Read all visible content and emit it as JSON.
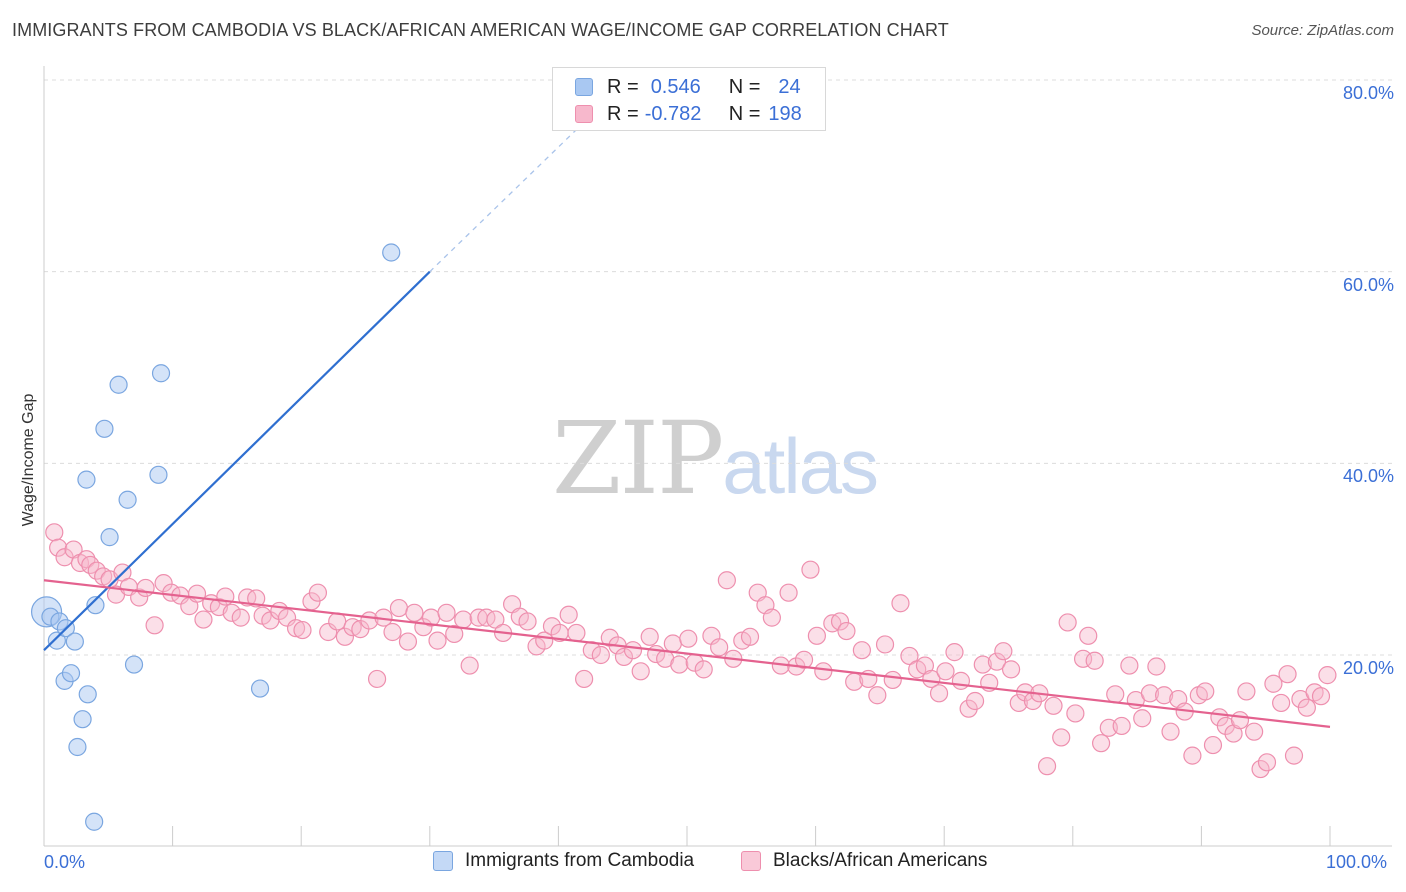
{
  "header": {
    "title": "IMMIGRANTS FROM CAMBODIA VS BLACK/AFRICAN AMERICAN WAGE/INCOME GAP CORRELATION CHART",
    "source": "Source: ZipAtlas.com"
  },
  "watermark": {
    "part1": "ZIP",
    "part2": "atlas"
  },
  "legend_top": {
    "rows": [
      {
        "r_label": "R =",
        "r_value": "0.546",
        "n_label": "N =",
        "n_value": "24"
      },
      {
        "r_label": "R =",
        "r_value": "-0.782",
        "n_label": "N =",
        "n_value": "198"
      }
    ]
  },
  "legend_bottom": {
    "items": [
      "Immigrants from Cambodia",
      "Blacks/African Americans"
    ]
  },
  "colors": {
    "blue_fill": "#a9c8f2",
    "blue_stroke": "#7aa6e0",
    "blue_line": "#2f6fd0",
    "pink_fill": "#f7b8cc",
    "pink_stroke": "#ee8fae",
    "pink_line": "#e4628f",
    "grid": "#dcdcdc",
    "tick_text": "#3b6fd6"
  },
  "chart_data": {
    "type": "scatter",
    "title": "IMMIGRANTS FROM CAMBODIA VS BLACK/AFRICAN AMERICAN WAGE/INCOME GAP CORRELATION CHART",
    "xlabel": "",
    "ylabel": "Wage/Income Gap",
    "xlim": [
      0,
      100
    ],
    "ylim": [
      0,
      85
    ],
    "x_tick_labels": [
      "0.0%",
      "100.0%"
    ],
    "y_ticks": [
      20,
      40,
      60,
      80
    ],
    "y_tick_labels": [
      "20.0%",
      "40.0%",
      "60.0%",
      "80.0%"
    ],
    "grid": true,
    "legend_position": "top-center",
    "series": [
      {
        "name": "Immigrants from Cambodia",
        "color": "#a9c8f2",
        "R": 0.546,
        "N": 24,
        "trend": {
          "x0": 0,
          "y0": 20.5,
          "x1": 30,
          "y1": 60,
          "dash_to_x": 42,
          "dash_to_y": 75.6
        },
        "points": [
          {
            "x": 0.2,
            "y": 24.5,
            "big": true
          },
          {
            "x": 0.5,
            "y": 24.0
          },
          {
            "x": 1.0,
            "y": 21.5
          },
          {
            "x": 1.2,
            "y": 23.5
          },
          {
            "x": 1.7,
            "y": 22.8
          },
          {
            "x": 1.6,
            "y": 17.3
          },
          {
            "x": 2.1,
            "y": 18.1
          },
          {
            "x": 2.4,
            "y": 21.4
          },
          {
            "x": 2.6,
            "y": 10.4
          },
          {
            "x": 3.0,
            "y": 13.3
          },
          {
            "x": 3.3,
            "y": 38.3
          },
          {
            "x": 3.4,
            "y": 15.9
          },
          {
            "x": 4.0,
            "y": 25.2
          },
          {
            "x": 3.9,
            "y": 2.6
          },
          {
            "x": 4.7,
            "y": 43.6
          },
          {
            "x": 5.1,
            "y": 32.3
          },
          {
            "x": 5.8,
            "y": 48.2
          },
          {
            "x": 6.5,
            "y": 36.2
          },
          {
            "x": 7.0,
            "y": 19.0
          },
          {
            "x": 8.9,
            "y": 38.8
          },
          {
            "x": 9.1,
            "y": 49.4
          },
          {
            "x": 16.8,
            "y": 16.5
          },
          {
            "x": 27.0,
            "y": 62.0
          }
        ]
      },
      {
        "name": "Blacks/African Americans",
        "color": "#f7b8cc",
        "R": -0.782,
        "N": 198,
        "trend": {
          "x0": 0,
          "y0": 27.8,
          "x1": 100,
          "y1": 12.5
        },
        "points": [
          {
            "x": 0.8,
            "y": 32.8
          },
          {
            "x": 1.1,
            "y": 31.2
          },
          {
            "x": 1.6,
            "y": 30.2
          },
          {
            "x": 2.3,
            "y": 31.0
          },
          {
            "x": 2.8,
            "y": 29.6
          },
          {
            "x": 3.3,
            "y": 30.0
          },
          {
            "x": 3.6,
            "y": 29.4
          },
          {
            "x": 4.1,
            "y": 28.8
          },
          {
            "x": 4.6,
            "y": 28.2
          },
          {
            "x": 5.1,
            "y": 27.9
          },
          {
            "x": 5.6,
            "y": 26.3
          },
          {
            "x": 6.1,
            "y": 28.6
          },
          {
            "x": 6.6,
            "y": 27.1
          },
          {
            "x": 7.4,
            "y": 26.0
          },
          {
            "x": 7.9,
            "y": 27.0
          },
          {
            "x": 8.6,
            "y": 23.1
          },
          {
            "x": 9.3,
            "y": 27.5
          },
          {
            "x": 9.9,
            "y": 26.5
          },
          {
            "x": 10.6,
            "y": 26.2
          },
          {
            "x": 11.3,
            "y": 25.1
          },
          {
            "x": 11.9,
            "y": 26.4
          },
          {
            "x": 12.4,
            "y": 23.7
          },
          {
            "x": 13.0,
            "y": 25.4
          },
          {
            "x": 13.6,
            "y": 25.0
          },
          {
            "x": 14.1,
            "y": 26.1
          },
          {
            "x": 14.6,
            "y": 24.4
          },
          {
            "x": 15.3,
            "y": 23.9
          },
          {
            "x": 15.8,
            "y": 26.0
          },
          {
            "x": 16.5,
            "y": 25.9
          },
          {
            "x": 17.0,
            "y": 24.1
          },
          {
            "x": 17.6,
            "y": 23.6
          },
          {
            "x": 18.3,
            "y": 24.6
          },
          {
            "x": 18.9,
            "y": 23.9
          },
          {
            "x": 19.6,
            "y": 22.8
          },
          {
            "x": 20.1,
            "y": 22.6
          },
          {
            "x": 20.8,
            "y": 25.6
          },
          {
            "x": 21.3,
            "y": 26.5
          },
          {
            "x": 22.1,
            "y": 22.4
          },
          {
            "x": 22.8,
            "y": 23.5
          },
          {
            "x": 23.4,
            "y": 21.9
          },
          {
            "x": 24.0,
            "y": 22.9
          },
          {
            "x": 24.6,
            "y": 22.7
          },
          {
            "x": 25.3,
            "y": 23.6
          },
          {
            "x": 25.9,
            "y": 17.5
          },
          {
            "x": 26.4,
            "y": 23.9
          },
          {
            "x": 27.1,
            "y": 22.4
          },
          {
            "x": 27.6,
            "y": 24.9
          },
          {
            "x": 28.3,
            "y": 21.4
          },
          {
            "x": 28.8,
            "y": 24.4
          },
          {
            "x": 29.5,
            "y": 22.9
          },
          {
            "x": 30.1,
            "y": 23.9
          },
          {
            "x": 30.6,
            "y": 21.5
          },
          {
            "x": 31.3,
            "y": 24.4
          },
          {
            "x": 31.9,
            "y": 22.2
          },
          {
            "x": 32.6,
            "y": 23.7
          },
          {
            "x": 33.1,
            "y": 18.9
          },
          {
            "x": 33.8,
            "y": 23.9
          },
          {
            "x": 34.4,
            "y": 23.9
          },
          {
            "x": 35.1,
            "y": 23.7
          },
          {
            "x": 35.7,
            "y": 22.3
          },
          {
            "x": 36.4,
            "y": 25.3
          },
          {
            "x": 37.0,
            "y": 24.0
          },
          {
            "x": 37.6,
            "y": 23.5
          },
          {
            "x": 38.3,
            "y": 20.9
          },
          {
            "x": 38.9,
            "y": 21.5
          },
          {
            "x": 39.5,
            "y": 23.0
          },
          {
            "x": 40.1,
            "y": 22.3
          },
          {
            "x": 40.8,
            "y": 24.2
          },
          {
            "x": 41.4,
            "y": 22.3
          },
          {
            "x": 42.0,
            "y": 17.5
          },
          {
            "x": 42.6,
            "y": 20.5
          },
          {
            "x": 43.3,
            "y": 20.0
          },
          {
            "x": 44.0,
            "y": 21.8
          },
          {
            "x": 44.6,
            "y": 21.0
          },
          {
            "x": 45.1,
            "y": 19.8
          },
          {
            "x": 45.8,
            "y": 20.5
          },
          {
            "x": 46.4,
            "y": 18.3
          },
          {
            "x": 47.1,
            "y": 21.9
          },
          {
            "x": 47.6,
            "y": 20.1
          },
          {
            "x": 48.3,
            "y": 19.6
          },
          {
            "x": 48.9,
            "y": 21.2
          },
          {
            "x": 49.4,
            "y": 19.0
          },
          {
            "x": 50.1,
            "y": 21.7
          },
          {
            "x": 50.6,
            "y": 19.2
          },
          {
            "x": 51.3,
            "y": 18.5
          },
          {
            "x": 51.9,
            "y": 22.0
          },
          {
            "x": 52.5,
            "y": 20.8
          },
          {
            "x": 53.1,
            "y": 27.8
          },
          {
            "x": 53.6,
            "y": 19.6
          },
          {
            "x": 54.3,
            "y": 21.5
          },
          {
            "x": 54.9,
            "y": 21.9
          },
          {
            "x": 55.5,
            "y": 26.5
          },
          {
            "x": 56.1,
            "y": 25.2
          },
          {
            "x": 56.6,
            "y": 23.9
          },
          {
            "x": 57.3,
            "y": 18.9
          },
          {
            "x": 57.9,
            "y": 26.5
          },
          {
            "x": 58.5,
            "y": 18.8
          },
          {
            "x": 59.1,
            "y": 19.5
          },
          {
            "x": 59.6,
            "y": 28.9
          },
          {
            "x": 60.1,
            "y": 22.0
          },
          {
            "x": 60.6,
            "y": 18.3
          },
          {
            "x": 61.3,
            "y": 23.3
          },
          {
            "x": 61.9,
            "y": 23.5
          },
          {
            "x": 62.4,
            "y": 22.5
          },
          {
            "x": 63.0,
            "y": 17.2
          },
          {
            "x": 63.6,
            "y": 20.5
          },
          {
            "x": 64.1,
            "y": 17.5
          },
          {
            "x": 64.8,
            "y": 15.8
          },
          {
            "x": 65.4,
            "y": 21.1
          },
          {
            "x": 66.0,
            "y": 17.4
          },
          {
            "x": 66.6,
            "y": 25.4
          },
          {
            "x": 67.3,
            "y": 19.9
          },
          {
            "x": 67.9,
            "y": 18.5
          },
          {
            "x": 68.5,
            "y": 18.9
          },
          {
            "x": 69.0,
            "y": 17.5
          },
          {
            "x": 69.6,
            "y": 16.0
          },
          {
            "x": 70.1,
            "y": 18.3
          },
          {
            "x": 70.8,
            "y": 20.3
          },
          {
            "x": 71.3,
            "y": 17.3
          },
          {
            "x": 71.9,
            "y": 14.4
          },
          {
            "x": 72.4,
            "y": 15.2
          },
          {
            "x": 73.0,
            "y": 19.0
          },
          {
            "x": 73.5,
            "y": 17.1
          },
          {
            "x": 74.1,
            "y": 19.3
          },
          {
            "x": 74.6,
            "y": 20.4
          },
          {
            "x": 75.2,
            "y": 18.5
          },
          {
            "x": 75.8,
            "y": 15.0
          },
          {
            "x": 76.3,
            "y": 16.1
          },
          {
            "x": 76.9,
            "y": 15.2
          },
          {
            "x": 77.4,
            "y": 16.0
          },
          {
            "x": 78.0,
            "y": 8.4
          },
          {
            "x": 78.5,
            "y": 14.7
          },
          {
            "x": 79.1,
            "y": 11.4
          },
          {
            "x": 79.6,
            "y": 23.4
          },
          {
            "x": 80.2,
            "y": 13.9
          },
          {
            "x": 80.8,
            "y": 19.6
          },
          {
            "x": 81.2,
            "y": 22.0
          },
          {
            "x": 81.7,
            "y": 19.4
          },
          {
            "x": 82.2,
            "y": 10.8
          },
          {
            "x": 82.8,
            "y": 12.4
          },
          {
            "x": 83.3,
            "y": 15.9
          },
          {
            "x": 83.8,
            "y": 12.6
          },
          {
            "x": 84.4,
            "y": 18.9
          },
          {
            "x": 84.9,
            "y": 15.3
          },
          {
            "x": 85.4,
            "y": 13.4
          },
          {
            "x": 86.0,
            "y": 16.0
          },
          {
            "x": 86.5,
            "y": 18.8
          },
          {
            "x": 87.1,
            "y": 15.8
          },
          {
            "x": 87.6,
            "y": 12.0
          },
          {
            "x": 88.2,
            "y": 15.4
          },
          {
            "x": 88.7,
            "y": 14.1
          },
          {
            "x": 89.3,
            "y": 9.5
          },
          {
            "x": 89.8,
            "y": 15.8
          },
          {
            "x": 90.3,
            "y": 16.2
          },
          {
            "x": 90.9,
            "y": 10.6
          },
          {
            "x": 91.4,
            "y": 13.5
          },
          {
            "x": 91.9,
            "y": 12.6
          },
          {
            "x": 92.5,
            "y": 11.8
          },
          {
            "x": 93.0,
            "y": 13.2
          },
          {
            "x": 93.5,
            "y": 16.2
          },
          {
            "x": 94.1,
            "y": 12.0
          },
          {
            "x": 94.6,
            "y": 8.1
          },
          {
            "x": 95.1,
            "y": 8.8
          },
          {
            "x": 95.6,
            "y": 17.0
          },
          {
            "x": 96.2,
            "y": 15.0
          },
          {
            "x": 96.7,
            "y": 18.0
          },
          {
            "x": 97.2,
            "y": 9.5
          },
          {
            "x": 97.7,
            "y": 15.4
          },
          {
            "x": 98.2,
            "y": 14.5
          },
          {
            "x": 98.8,
            "y": 16.1
          },
          {
            "x": 99.3,
            "y": 15.7
          },
          {
            "x": 99.8,
            "y": 17.9
          }
        ]
      }
    ]
  }
}
